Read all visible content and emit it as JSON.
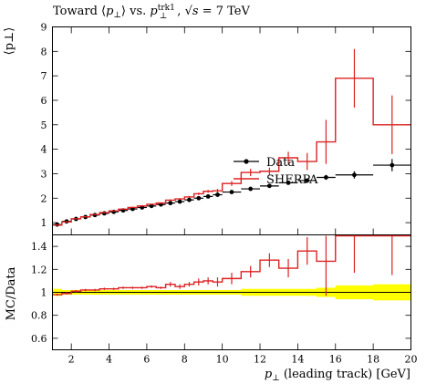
{
  "chart_data": [
    {
      "type": "line",
      "title": "Toward ⟨p⊥⟩ vs. p⊥trk1, √s = 7 TeV",
      "title_parts": {
        "prefix": "Toward ⟨",
        "pt": "p",
        "perp": "⊥",
        "mid": "⟩ vs. ",
        "pt2": "p",
        "sup": "trk1",
        "sub": "⊥",
        "sqrt": "√",
        "s": "s",
        "suffix": " = 7 TeV"
      },
      "ylabel": "⟨p⊥⟩",
      "ylim": [
        0.5,
        9
      ],
      "xlim": [
        1,
        20
      ],
      "yticks": [
        1,
        2,
        3,
        4,
        5,
        6,
        7,
        8,
        9
      ],
      "legend_placement": "center-right",
      "series": [
        {
          "name": "Data",
          "style": "points",
          "color": "#000000",
          "x": [
            1.25,
            1.75,
            2.25,
            2.75,
            3.25,
            3.75,
            4.25,
            4.75,
            5.25,
            5.75,
            6.25,
            6.75,
            7.25,
            7.75,
            8.25,
            8.75,
            9.25,
            9.75,
            10.5,
            11.5,
            12.5,
            13.5,
            14.5,
            15.5,
            17.0,
            19.0
          ],
          "y": [
            0.92,
            1.05,
            1.15,
            1.23,
            1.31,
            1.38,
            1.44,
            1.5,
            1.56,
            1.62,
            1.68,
            1.74,
            1.8,
            1.86,
            1.93,
            2.0,
            2.07,
            2.14,
            2.25,
            2.38,
            2.5,
            2.63,
            2.72,
            2.85,
            2.95,
            3.35
          ],
          "xerr": [
            0.25,
            0.25,
            0.25,
            0.25,
            0.25,
            0.25,
            0.25,
            0.25,
            0.25,
            0.25,
            0.25,
            0.25,
            0.25,
            0.25,
            0.25,
            0.25,
            0.25,
            0.25,
            0.5,
            0.5,
            0.5,
            0.5,
            0.5,
            0.5,
            1.0,
            1.0
          ],
          "yerr": [
            0.01,
            0.01,
            0.01,
            0.01,
            0.01,
            0.01,
            0.01,
            0.01,
            0.01,
            0.01,
            0.01,
            0.01,
            0.02,
            0.02,
            0.02,
            0.03,
            0.03,
            0.04,
            0.05,
            0.05,
            0.06,
            0.06,
            0.08,
            0.1,
            0.15,
            0.25
          ]
        },
        {
          "name": "SHERPA",
          "style": "histogram",
          "color": "#dd2222",
          "edges": [
            1.0,
            1.5,
            2.0,
            2.5,
            3.0,
            3.5,
            4.0,
            4.5,
            5.0,
            5.5,
            6.0,
            6.5,
            7.0,
            7.5,
            8.0,
            8.5,
            9.0,
            9.5,
            10.0,
            11.0,
            12.0,
            13.0,
            14.0,
            15.0,
            16.0,
            18.0,
            20.0
          ],
          "values": [
            0.9,
            1.03,
            1.16,
            1.24,
            1.33,
            1.41,
            1.48,
            1.55,
            1.62,
            1.68,
            1.75,
            1.8,
            1.92,
            1.97,
            2.05,
            2.18,
            2.28,
            2.3,
            2.6,
            3.05,
            3.1,
            3.65,
            3.5,
            4.3,
            6.9,
            5.0
          ],
          "yerr": [
            0.01,
            0.01,
            0.01,
            0.01,
            0.01,
            0.01,
            0.01,
            0.01,
            0.01,
            0.02,
            0.02,
            0.02,
            0.03,
            0.03,
            0.04,
            0.05,
            0.06,
            0.08,
            0.1,
            0.15,
            0.15,
            0.25,
            0.35,
            0.9,
            1.2,
            1.2
          ]
        }
      ]
    },
    {
      "type": "line",
      "ylabel": "MC/Data",
      "xlabel": "p⊥ (leading track) [GeV]",
      "xlabel_parts": {
        "pt": "p",
        "perp": "⊥",
        "rest": " (leading track) [GeV]"
      },
      "xlim": [
        1,
        20
      ],
      "ylim": [
        0.5,
        1.5
      ],
      "yticks": [
        0.6,
        0.8,
        1.0,
        1.2,
        1.4
      ],
      "ytick_labels": [
        "0.6",
        "0.8",
        "1",
        "1.2",
        "1.4"
      ],
      "xticks": [
        2,
        4,
        6,
        8,
        10,
        12,
        14,
        16,
        18,
        20
      ],
      "reference_line": 1.0,
      "data_uncertainty_band": {
        "color": "#ffff00",
        "edges": [
          1.0,
          1.5,
          2.0,
          2.5,
          3.0,
          3.5,
          4.0,
          4.5,
          5.0,
          5.5,
          6.0,
          6.5,
          7.0,
          7.5,
          8.0,
          8.5,
          9.0,
          9.5,
          10.0,
          11.0,
          12.0,
          13.0,
          14.0,
          15.0,
          16.0,
          18.0,
          20.0
        ],
        "half_width": [
          0.03,
          0.02,
          0.02,
          0.02,
          0.02,
          0.02,
          0.02,
          0.02,
          0.02,
          0.02,
          0.02,
          0.02,
          0.02,
          0.02,
          0.02,
          0.02,
          0.02,
          0.02,
          0.02,
          0.03,
          0.03,
          0.03,
          0.03,
          0.04,
          0.06,
          0.07,
          0.07
        ]
      },
      "series": [
        {
          "name": "SHERPA / Data",
          "style": "histogram",
          "color": "#dd2222",
          "edges": [
            1.0,
            1.5,
            2.0,
            2.5,
            3.0,
            3.5,
            4.0,
            4.5,
            5.0,
            5.5,
            6.0,
            6.5,
            7.0,
            7.5,
            8.0,
            8.5,
            9.0,
            9.5,
            10.0,
            11.0,
            12.0,
            13.0,
            14.0,
            15.0,
            16.0,
            18.0,
            20.0
          ],
          "values": [
            0.98,
            0.99,
            1.01,
            1.02,
            1.02,
            1.03,
            1.03,
            1.04,
            1.04,
            1.04,
            1.05,
            1.04,
            1.07,
            1.05,
            1.07,
            1.09,
            1.1,
            1.09,
            1.12,
            1.18,
            1.28,
            1.21,
            1.36,
            1.27,
            1.57,
            1.5
          ],
          "yerr": [
            0.01,
            0.01,
            0.01,
            0.01,
            0.01,
            0.01,
            0.01,
            0.01,
            0.01,
            0.01,
            0.01,
            0.01,
            0.02,
            0.02,
            0.02,
            0.03,
            0.03,
            0.04,
            0.05,
            0.05,
            0.06,
            0.08,
            0.12,
            0.3,
            0.4,
            0.35
          ]
        }
      ]
    }
  ]
}
